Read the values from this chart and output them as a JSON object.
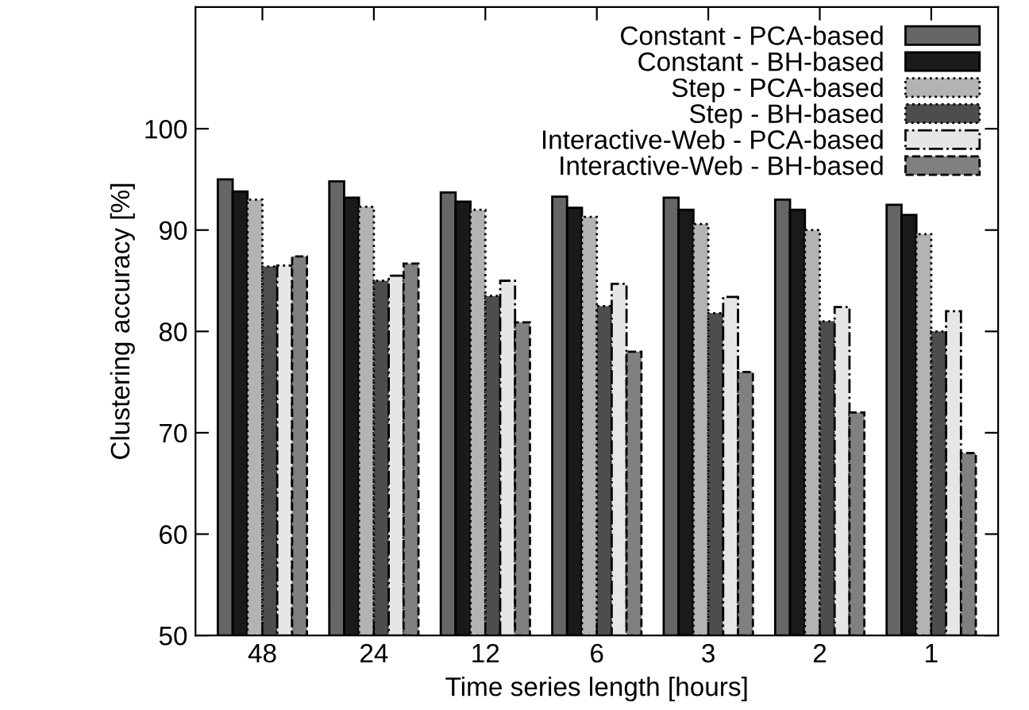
{
  "chart_data": {
    "type": "bar",
    "xlabel": "Time series length [hours]",
    "ylabel": "Clustering accuracy [%]",
    "categories": [
      "48",
      "24",
      "12",
      "6",
      "3",
      "2",
      "1"
    ],
    "series": [
      {
        "name": "Constant - PCA-based",
        "color": "#666666",
        "values": [
          95,
          94.8,
          93.7,
          93.3,
          93.2,
          93,
          92.5
        ]
      },
      {
        "name": "Constant - BH-based",
        "color": "#1a1a1a",
        "values": [
          93.8,
          93.2,
          92.8,
          92.2,
          92,
          92,
          91.5
        ]
      },
      {
        "name": "Step - PCA-based",
        "color": "#b3b3b3",
        "values": [
          93,
          92.3,
          92,
          91.3,
          90.6,
          90,
          89.6
        ]
      },
      {
        "name": "Step - BH-based",
        "color": "#4d4d4d",
        "values": [
          86.4,
          85,
          83.5,
          82.5,
          81.8,
          81,
          80
        ]
      },
      {
        "name": "Interactive-Web - PCA-based",
        "color": "#e6e6e6",
        "values": [
          86.5,
          85.5,
          85,
          84.7,
          83.4,
          82.4,
          82
        ]
      },
      {
        "name": "Interactive-Web - BH-based",
        "color": "#808080",
        "values": [
          87.4,
          86.7,
          80.9,
          78,
          76,
          72,
          68
        ]
      }
    ],
    "ylim": [
      50,
      112
    ],
    "yticks": [
      50,
      60,
      70,
      80,
      90,
      100
    ],
    "grid": false,
    "legend": "top right"
  }
}
